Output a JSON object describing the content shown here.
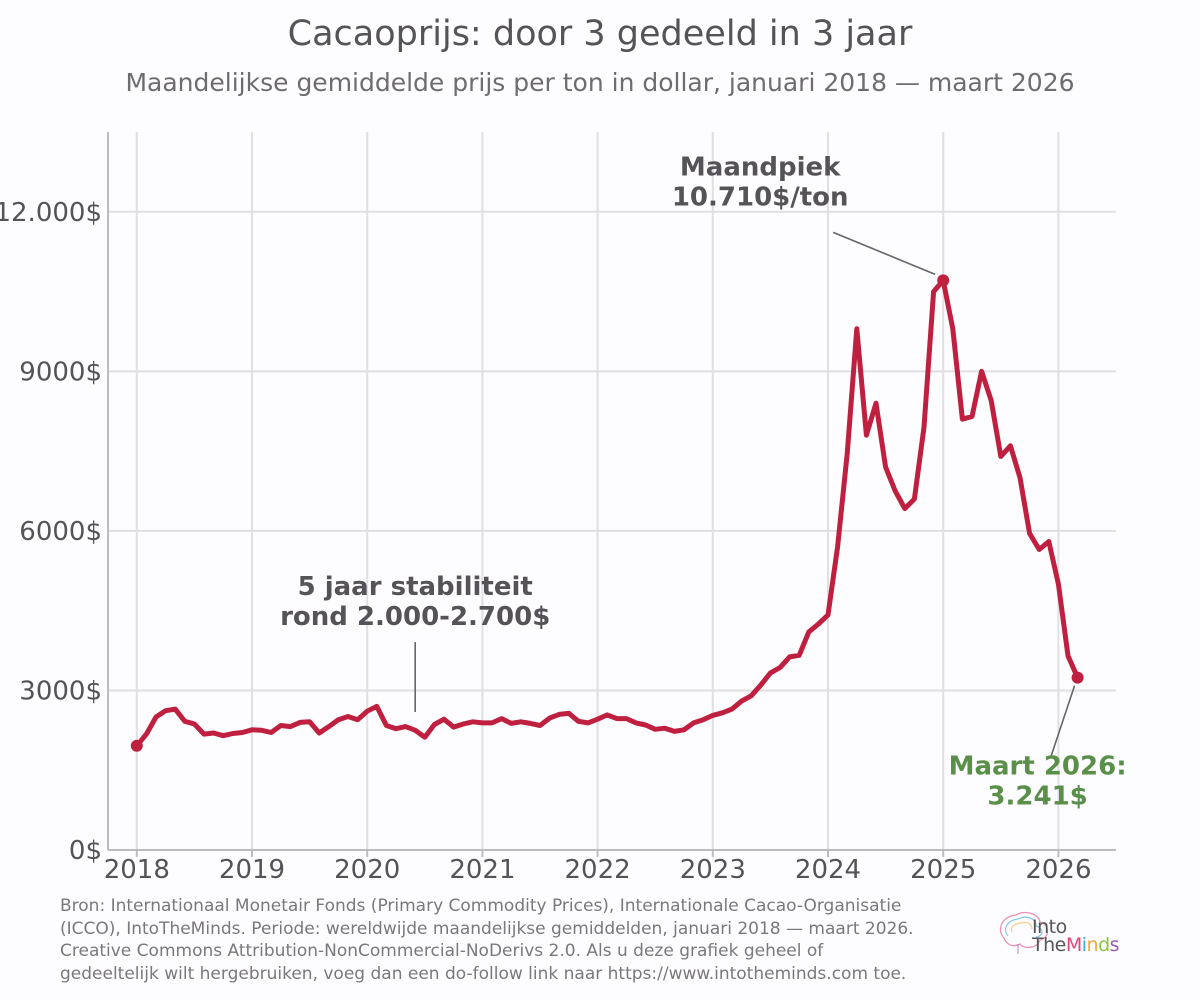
{
  "header": {
    "title": "Cacaoprijs: door 3 gedeeld in 3 jaar",
    "subtitle": "Maandelijkse gemiddelde prijs per ton in dollar, januari 2018 — maart 2026"
  },
  "chart_data": {
    "type": "line",
    "title": "Cacaoprijs: door 3 gedeeld in 3 jaar",
    "subtitle": "Maandelijkse gemiddelde prijs per ton in dollar, januari 2018 — maart 2026",
    "xlabel": "",
    "ylabel": "",
    "xlim": [
      2017.75,
      2026.5
    ],
    "ylim": [
      0,
      13500
    ],
    "grid": true,
    "x_ticks": [
      "2018",
      "2019",
      "2020",
      "2021",
      "2022",
      "2023",
      "2024",
      "2025",
      "2026"
    ],
    "y_ticks": [
      {
        "value": 0,
        "label": "0$"
      },
      {
        "value": 3000,
        "label": "3000$"
      },
      {
        "value": 6000,
        "label": "6000$"
      },
      {
        "value": 9000,
        "label": "9000$"
      },
      {
        "value": 12000,
        "label": "12.000$"
      }
    ],
    "series": [
      {
        "color": "#c0203f",
        "start_year": 2018,
        "start_month": 1,
        "values": [
          1960,
          2180,
          2500,
          2620,
          2650,
          2420,
          2370,
          2180,
          2200,
          2150,
          2190,
          2210,
          2260,
          2250,
          2210,
          2340,
          2320,
          2400,
          2410,
          2200,
          2320,
          2450,
          2510,
          2450,
          2610,
          2700,
          2340,
          2280,
          2320,
          2250,
          2120,
          2360,
          2460,
          2310,
          2370,
          2410,
          2390,
          2390,
          2470,
          2380,
          2410,
          2380,
          2340,
          2480,
          2550,
          2570,
          2420,
          2390,
          2460,
          2540,
          2470,
          2470,
          2390,
          2350,
          2270,
          2290,
          2230,
          2260,
          2390,
          2450,
          2530,
          2580,
          2650,
          2800,
          2900,
          3100,
          3330,
          3430,
          3630,
          3660,
          4100,
          4250,
          4420,
          5700,
          7450,
          9800,
          7800,
          8400,
          7200,
          6750,
          6420,
          6600,
          7950,
          10500,
          10710,
          9800,
          8100,
          8150,
          9000,
          8450,
          7400,
          7600,
          7000,
          5950,
          5650,
          5800,
          5000,
          3650,
          3241
        ]
      }
    ],
    "markers": [
      {
        "x": "2018-01",
        "y": 1960
      },
      {
        "x": "2025-01",
        "y": 10710
      },
      {
        "x": "2026-03",
        "y": 3241
      }
    ],
    "annotations": [
      {
        "lines": [
          "Maandpiek",
          "10.710$/ton"
        ],
        "x": "2025-01",
        "y": 10710,
        "color": "#555358"
      },
      {
        "lines": [
          "5 jaar stabiliteit",
          "rond 2.000-2.700$"
        ],
        "x": "2020-06",
        "y": 2500,
        "color": "#555358"
      },
      {
        "lines": [
          "Maart 2026:",
          "3.241$"
        ],
        "x": "2026-03",
        "y": 3241,
        "color": "#5a8f4a"
      }
    ]
  },
  "footer": {
    "source_lines": [
      "Bron: Internationaal Monetair Fonds (Primary Commodity Prices), Internationale Cacao-Organisatie",
      "(ICCO), IntoTheMinds. Periode: wereldwijde maandelijkse gemiddelden, januari 2018 — maart 2026.",
      "Creative Commons Attribution-NonCommercial-NoDerivs 2.0. Als u deze grafiek geheel of",
      "gedeeltelijk wilt hergebruiken, voeg dan een do-follow link naar https://www.intotheminds.com toe."
    ],
    "logo_into": "Into",
    "logo_the": "The",
    "logo_minds": [
      "M",
      "i",
      "n",
      "d",
      "s"
    ],
    "logo_colors": [
      "#e0457b",
      "#3fa7d6",
      "#f2a93b",
      "#8cc63f",
      "#9b59b6"
    ]
  }
}
